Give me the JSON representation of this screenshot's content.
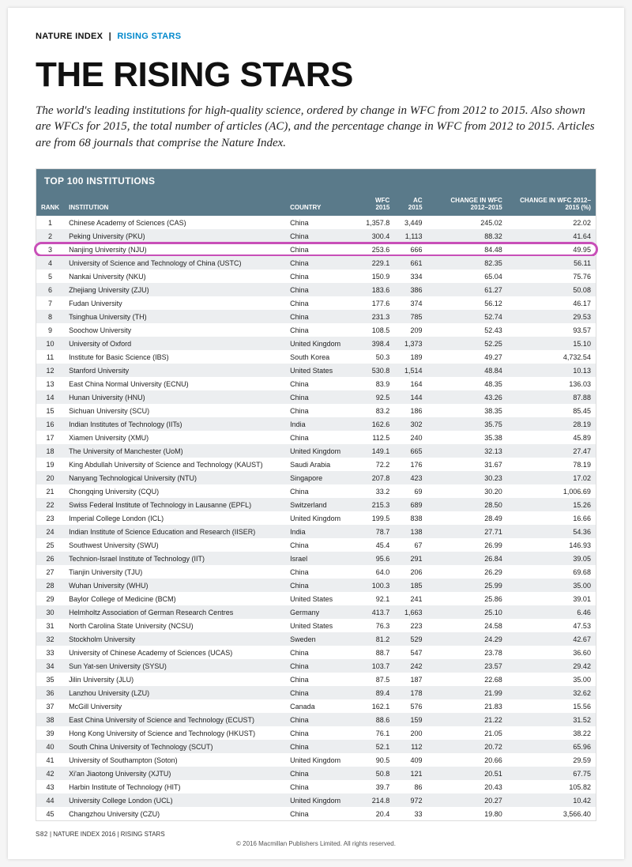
{
  "header": {
    "dark": "NATURE INDEX",
    "blue": "RISING STARS"
  },
  "title": "THE RISING STARS",
  "subtitle": "The world's leading institutions for high-quality science, ordered by change in WFC from 2012 to 2015. Also shown are WFCs for 2015, the total number of articles (AC), and the percentage change in WFC from 2012 to 2015. Articles are from 68 journals that comprise the Nature Index.",
  "table_title": "TOP 100 INSTITUTIONS",
  "columns": [
    "RANK",
    "INSTITUTION",
    "COUNTRY",
    "WFC 2015",
    "AC 2015",
    "CHANGE IN WFC 2012–2015",
    "CHANGE IN WFC 2012–2015 (%)"
  ],
  "highlight_rank": 3,
  "rows": [
    {
      "r": 1,
      "i": "Chinese Academy of Sciences (CAS)",
      "c": "China",
      "w": "1,357.8",
      "a": "3,449",
      "d": "245.02",
      "p": "22.02"
    },
    {
      "r": 2,
      "i": "Peking University (PKU)",
      "c": "China",
      "w": "300.4",
      "a": "1,113",
      "d": "88.32",
      "p": "41.64"
    },
    {
      "r": 3,
      "i": "Nanjing University (NJU)",
      "c": "China",
      "w": "253.6",
      "a": "666",
      "d": "84.48",
      "p": "49.95"
    },
    {
      "r": 4,
      "i": "University of Science and Technology of China (USTC)",
      "c": "China",
      "w": "229.1",
      "a": "661",
      "d": "82.35",
      "p": "56.11"
    },
    {
      "r": 5,
      "i": "Nankai University (NKU)",
      "c": "China",
      "w": "150.9",
      "a": "334",
      "d": "65.04",
      "p": "75.76"
    },
    {
      "r": 6,
      "i": "Zhejiang University (ZJU)",
      "c": "China",
      "w": "183.6",
      "a": "386",
      "d": "61.27",
      "p": "50.08"
    },
    {
      "r": 7,
      "i": "Fudan University",
      "c": "China",
      "w": "177.6",
      "a": "374",
      "d": "56.12",
      "p": "46.17"
    },
    {
      "r": 8,
      "i": "Tsinghua University (TH)",
      "c": "China",
      "w": "231.3",
      "a": "785",
      "d": "52.74",
      "p": "29.53"
    },
    {
      "r": 9,
      "i": "Soochow University",
      "c": "China",
      "w": "108.5",
      "a": "209",
      "d": "52.43",
      "p": "93.57"
    },
    {
      "r": 10,
      "i": "University of Oxford",
      "c": "United Kingdom",
      "w": "398.4",
      "a": "1,373",
      "d": "52.25",
      "p": "15.10"
    },
    {
      "r": 11,
      "i": "Institute for Basic Science (IBS)",
      "c": "South Korea",
      "w": "50.3",
      "a": "189",
      "d": "49.27",
      "p": "4,732.54"
    },
    {
      "r": 12,
      "i": "Stanford University",
      "c": "United States",
      "w": "530.8",
      "a": "1,514",
      "d": "48.84",
      "p": "10.13"
    },
    {
      "r": 13,
      "i": "East China Normal University (ECNU)",
      "c": "China",
      "w": "83.9",
      "a": "164",
      "d": "48.35",
      "p": "136.03"
    },
    {
      "r": 14,
      "i": "Hunan University (HNU)",
      "c": "China",
      "w": "92.5",
      "a": "144",
      "d": "43.26",
      "p": "87.88"
    },
    {
      "r": 15,
      "i": "Sichuan University (SCU)",
      "c": "China",
      "w": "83.2",
      "a": "186",
      "d": "38.35",
      "p": "85.45"
    },
    {
      "r": 16,
      "i": "Indian Institutes of Technology (IITs)",
      "c": "India",
      "w": "162.6",
      "a": "302",
      "d": "35.75",
      "p": "28.19"
    },
    {
      "r": 17,
      "i": "Xiamen University (XMU)",
      "c": "China",
      "w": "112.5",
      "a": "240",
      "d": "35.38",
      "p": "45.89"
    },
    {
      "r": 18,
      "i": "The University of Manchester (UoM)",
      "c": "United Kingdom",
      "w": "149.1",
      "a": "665",
      "d": "32.13",
      "p": "27.47"
    },
    {
      "r": 19,
      "i": "King Abdullah University of Science and Technology (KAUST)",
      "c": "Saudi Arabia",
      "w": "72.2",
      "a": "176",
      "d": "31.67",
      "p": "78.19"
    },
    {
      "r": 20,
      "i": "Nanyang Technological University (NTU)",
      "c": "Singapore",
      "w": "207.8",
      "a": "423",
      "d": "30.23",
      "p": "17.02"
    },
    {
      "r": 21,
      "i": "Chongqing University (CQU)",
      "c": "China",
      "w": "33.2",
      "a": "69",
      "d": "30.20",
      "p": "1,006.69"
    },
    {
      "r": 22,
      "i": "Swiss Federal Institute of Technology in Lausanne (EPFL)",
      "c": "Switzerland",
      "w": "215.3",
      "a": "689",
      "d": "28.50",
      "p": "15.26"
    },
    {
      "r": 23,
      "i": "Imperial College London (ICL)",
      "c": "United Kingdom",
      "w": "199.5",
      "a": "838",
      "d": "28.49",
      "p": "16.66"
    },
    {
      "r": 24,
      "i": "Indian Institute of Science Education and Research (IISER)",
      "c": "India",
      "w": "78.7",
      "a": "138",
      "d": "27.71",
      "p": "54.36"
    },
    {
      "r": 25,
      "i": "Southwest University (SWU)",
      "c": "China",
      "w": "45.4",
      "a": "67",
      "d": "26.99",
      "p": "146.93"
    },
    {
      "r": 26,
      "i": "Technion-Israel Institute of Technology (IIT)",
      "c": "Israel",
      "w": "95.6",
      "a": "291",
      "d": "26.84",
      "p": "39.05"
    },
    {
      "r": 27,
      "i": "Tianjin University (TJU)",
      "c": "China",
      "w": "64.0",
      "a": "206",
      "d": "26.29",
      "p": "69.68"
    },
    {
      "r": 28,
      "i": "Wuhan University (WHU)",
      "c": "China",
      "w": "100.3",
      "a": "185",
      "d": "25.99",
      "p": "35.00"
    },
    {
      "r": 29,
      "i": "Baylor College of Medicine (BCM)",
      "c": "United States",
      "w": "92.1",
      "a": "241",
      "d": "25.86",
      "p": "39.01"
    },
    {
      "r": 30,
      "i": "Helmholtz Association of German Research Centres",
      "c": "Germany",
      "w": "413.7",
      "a": "1,663",
      "d": "25.10",
      "p": "6.46"
    },
    {
      "r": 31,
      "i": "North Carolina State University (NCSU)",
      "c": "United States",
      "w": "76.3",
      "a": "223",
      "d": "24.58",
      "p": "47.53"
    },
    {
      "r": 32,
      "i": "Stockholm University",
      "c": "Sweden",
      "w": "81.2",
      "a": "529",
      "d": "24.29",
      "p": "42.67"
    },
    {
      "r": 33,
      "i": "University of Chinese Academy of Sciences (UCAS)",
      "c": "China",
      "w": "88.7",
      "a": "547",
      "d": "23.78",
      "p": "36.60"
    },
    {
      "r": 34,
      "i": "Sun Yat-sen University (SYSU)",
      "c": "China",
      "w": "103.7",
      "a": "242",
      "d": "23.57",
      "p": "29.42"
    },
    {
      "r": 35,
      "i": "Jilin University (JLU)",
      "c": "China",
      "w": "87.5",
      "a": "187",
      "d": "22.68",
      "p": "35.00"
    },
    {
      "r": 36,
      "i": "Lanzhou University (LZU)",
      "c": "China",
      "w": "89.4",
      "a": "178",
      "d": "21.99",
      "p": "32.62"
    },
    {
      "r": 37,
      "i": "McGill University",
      "c": "Canada",
      "w": "162.1",
      "a": "576",
      "d": "21.83",
      "p": "15.56"
    },
    {
      "r": 38,
      "i": "East China University of Science and Technology (ECUST)",
      "c": "China",
      "w": "88.6",
      "a": "159",
      "d": "21.22",
      "p": "31.52"
    },
    {
      "r": 39,
      "i": "Hong Kong University of Science and Technology (HKUST)",
      "c": "China",
      "w": "76.1",
      "a": "200",
      "d": "21.05",
      "p": "38.22"
    },
    {
      "r": 40,
      "i": "South China University of Technology (SCUT)",
      "c": "China",
      "w": "52.1",
      "a": "112",
      "d": "20.72",
      "p": "65.96"
    },
    {
      "r": 41,
      "i": "University of Southampton (Soton)",
      "c": "United Kingdom",
      "w": "90.5",
      "a": "409",
      "d": "20.66",
      "p": "29.59"
    },
    {
      "r": 42,
      "i": "Xi'an Jiaotong University (XJTU)",
      "c": "China",
      "w": "50.8",
      "a": "121",
      "d": "20.51",
      "p": "67.75"
    },
    {
      "r": 43,
      "i": "Harbin Institute of Technology (HIT)",
      "c": "China",
      "w": "39.7",
      "a": "86",
      "d": "20.43",
      "p": "105.82"
    },
    {
      "r": 44,
      "i": "University College London (UCL)",
      "c": "United Kingdom",
      "w": "214.8",
      "a": "972",
      "d": "20.27",
      "p": "10.42"
    },
    {
      "r": 45,
      "i": "Changzhou University (CZU)",
      "c": "China",
      "w": "20.4",
      "a": "33",
      "d": "19.80",
      "p": "3,566.40"
    }
  ],
  "footer_page": "S82",
  "footer_text": "NATURE INDEX 2016 | RISING STARS",
  "copyright": "© 2016 Macmillan Publishers Limited. All rights reserved."
}
